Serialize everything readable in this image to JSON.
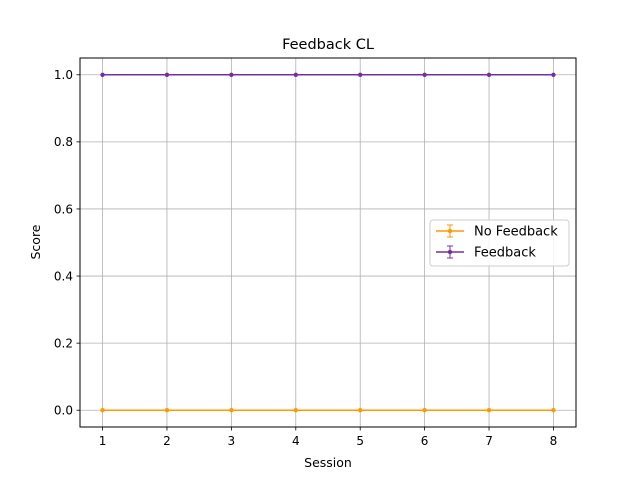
{
  "chart_data": {
    "type": "line",
    "title": "Feedback CL",
    "xlabel": "Session",
    "ylabel": "Score",
    "x": [
      1,
      2,
      3,
      4,
      5,
      6,
      7,
      8
    ],
    "xticks": [
      "1",
      "2",
      "3",
      "4",
      "5",
      "6",
      "7",
      "8"
    ],
    "yticks": [
      "0.0",
      "0.2",
      "0.4",
      "0.6",
      "0.8",
      "1.0"
    ],
    "ytick_values": [
      0.0,
      0.2,
      0.4,
      0.6,
      0.8,
      1.0
    ],
    "xlim": [
      0.65,
      8.35
    ],
    "ylim": [
      -0.05,
      1.05
    ],
    "grid": true,
    "legend_position": "right",
    "error_bars": true,
    "series": [
      {
        "name": "No Feedback",
        "color": "#ff9900",
        "values": [
          0,
          0,
          0,
          0,
          0,
          0,
          0,
          0
        ]
      },
      {
        "name": "Feedback",
        "color": "#7030a0",
        "values": [
          1,
          1,
          1,
          1,
          1,
          1,
          1,
          1
        ]
      }
    ]
  }
}
